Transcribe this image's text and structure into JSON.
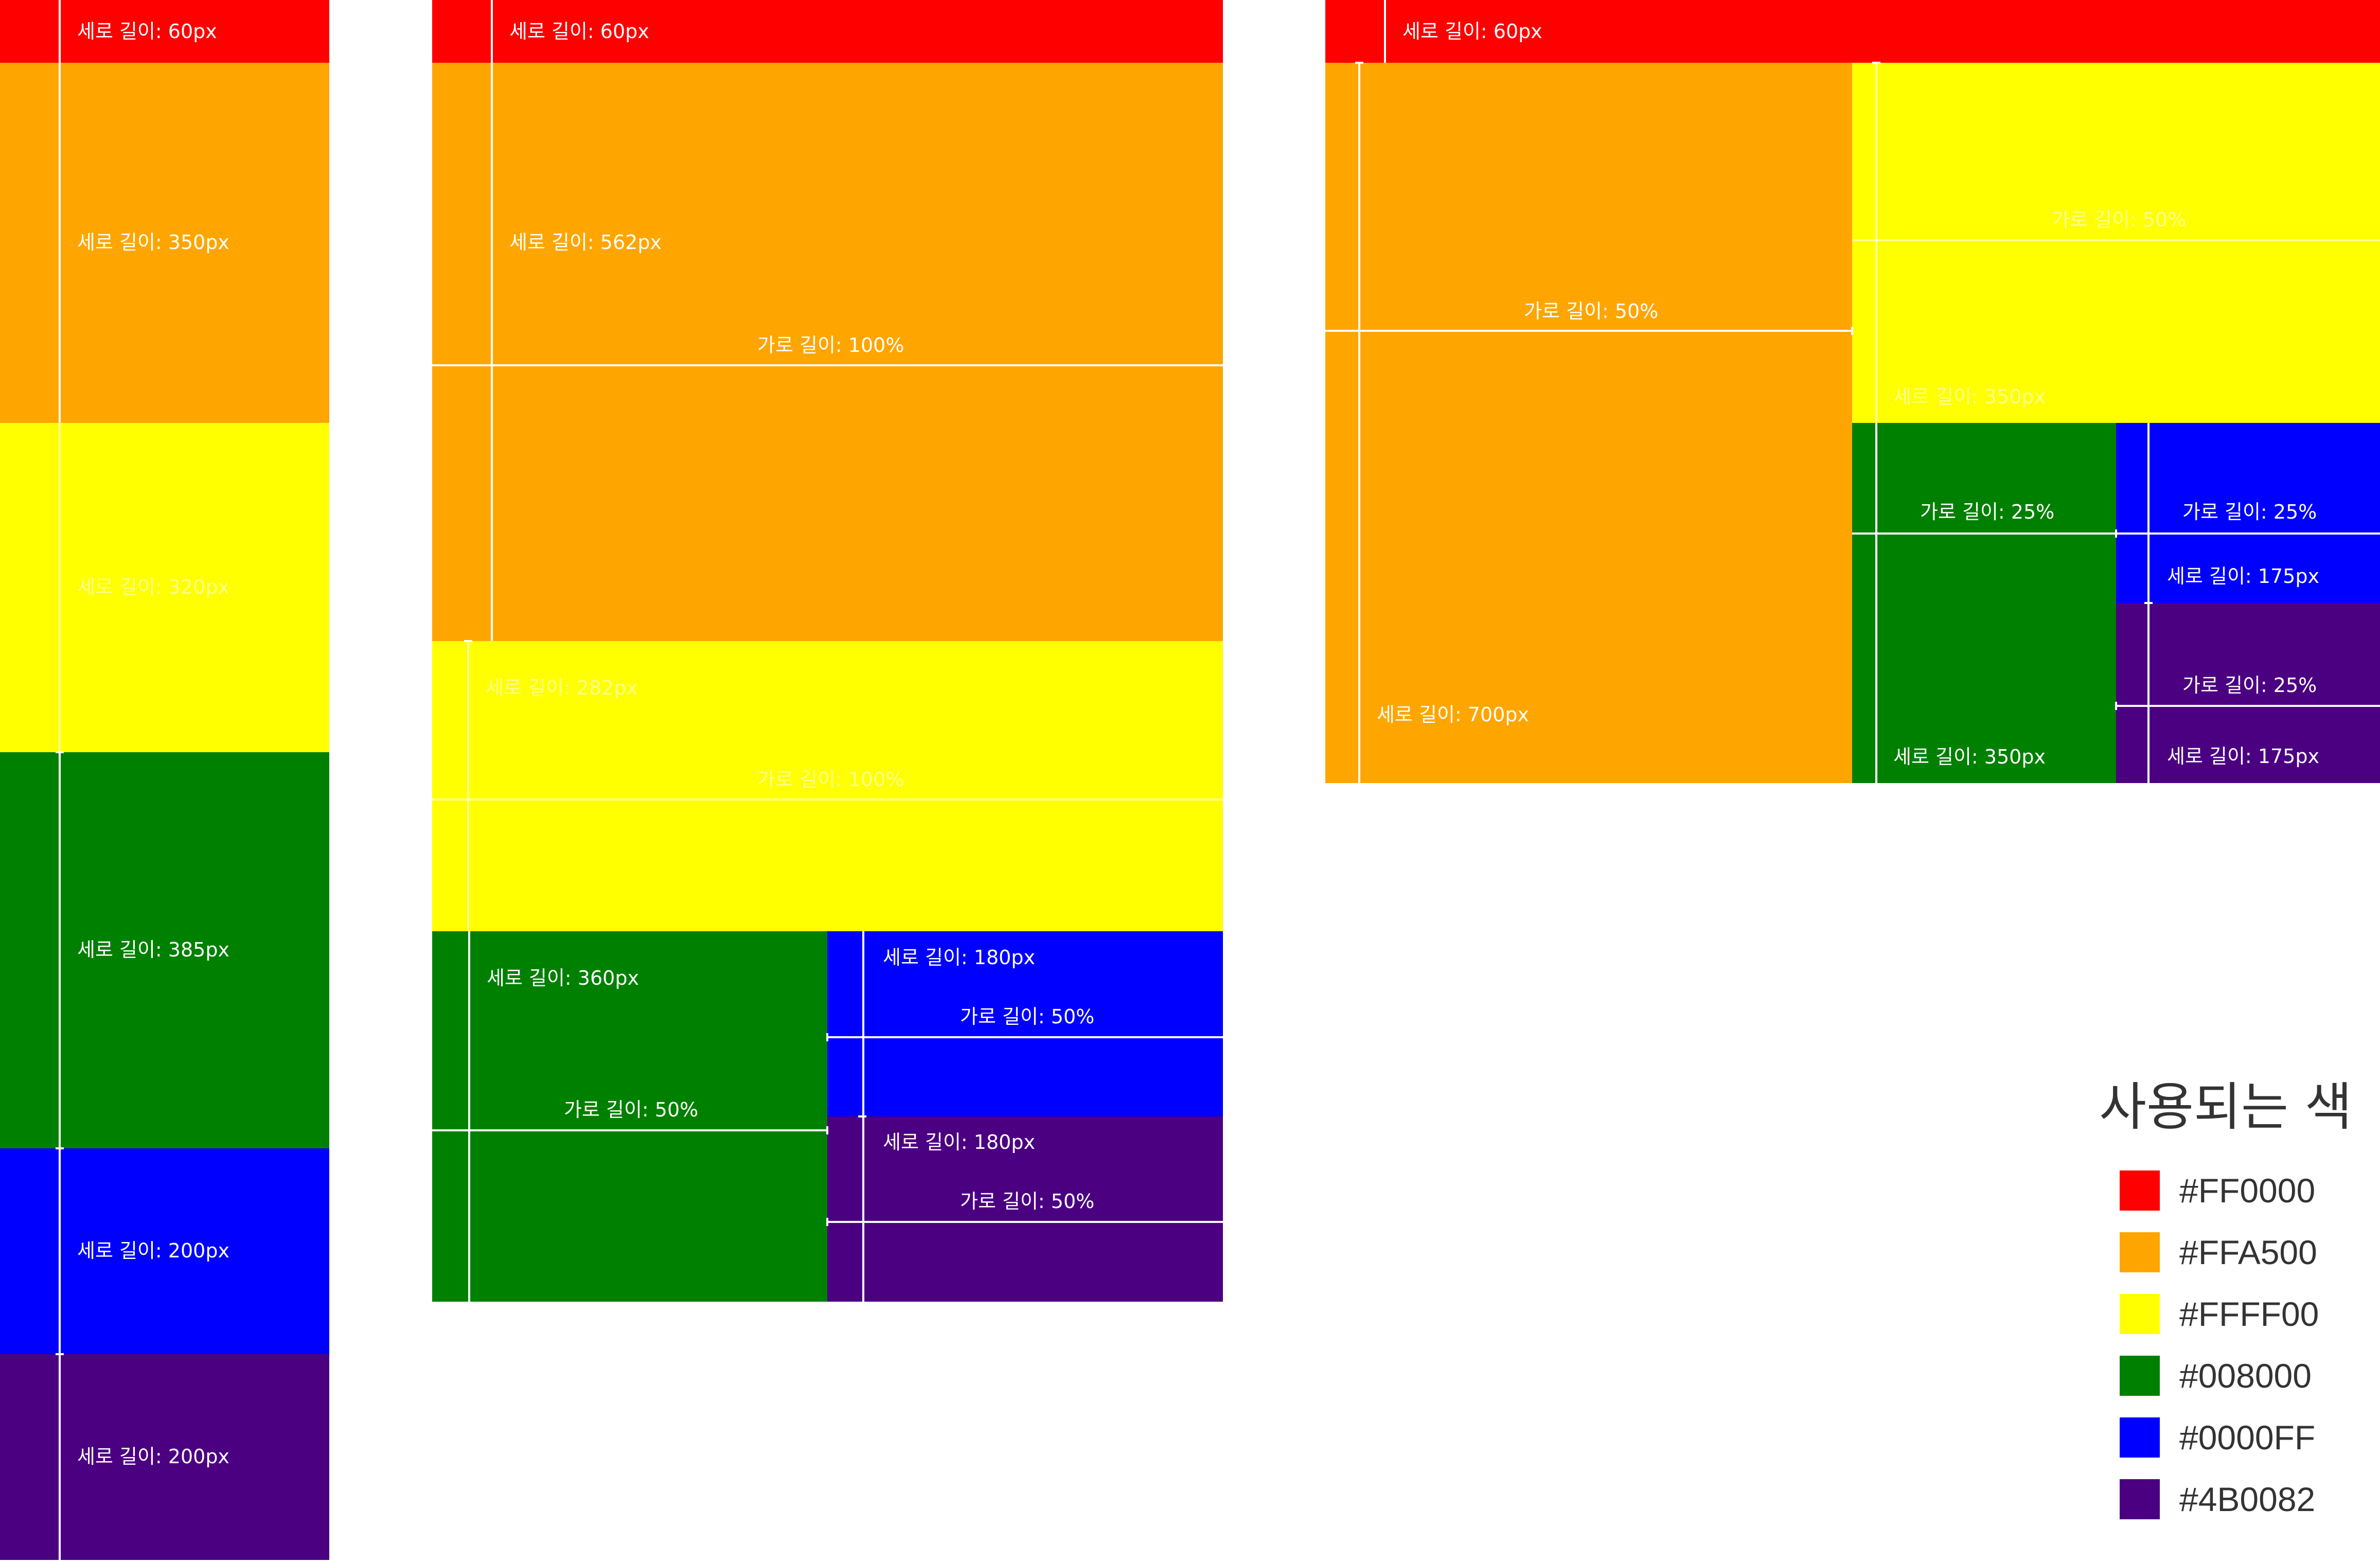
{
  "colors": {
    "red": "#FF0000",
    "orange": "#FFA500",
    "yellow": "#FFFF00",
    "green": "#008000",
    "blue": "#0000FF",
    "indigo": "#4B0082"
  },
  "layout1": {
    "red_height": "세로 길이: 60px",
    "orange_height": "세로 길이: 350px",
    "yellow_height": "세로 길이: 320px",
    "green_height": "세로 길이: 385px",
    "blue_height": "세로 길이: 200px",
    "indigo_height": "세로 길이: 200px"
  },
  "layout2": {
    "red_height": "세로 길이: 60px",
    "orange_height": "세로 길이: 562px",
    "orange_width": "가로 길이: 100%",
    "yellow_height": "세로 길이: 282px",
    "yellow_width": "가로 길이: 100%",
    "green_height": "세로 길이: 360px",
    "green_width": "가로 길이: 50%",
    "blue_height": "세로 길이: 180px",
    "blue_width": "가로 길이: 50%",
    "indigo_height": "세로 길이: 180px",
    "indigo_width": "가로 길이: 50%"
  },
  "layout3": {
    "red_height": "세로 길이: 60px",
    "orange_width": "가로 길이: 50%",
    "orange_height": "세로 길이: 700px",
    "yellow_width": "가로 길이: 50%",
    "yellow_height": "세로 길이: 350px",
    "green_width": "가로 길이: 25%",
    "green_height": "세로 길이: 350px",
    "blue_width": "가로 길이: 25%",
    "blue_height": "세로 길이: 175px",
    "indigo_width": "가로 길이: 25%",
    "indigo_height": "세로 길이: 175px"
  },
  "legend": {
    "title": "사용되는 색",
    "items": [
      "#FF0000",
      "#FFA500",
      "#FFFF00",
      "#008000",
      "#0000FF",
      "#4B0082"
    ]
  }
}
